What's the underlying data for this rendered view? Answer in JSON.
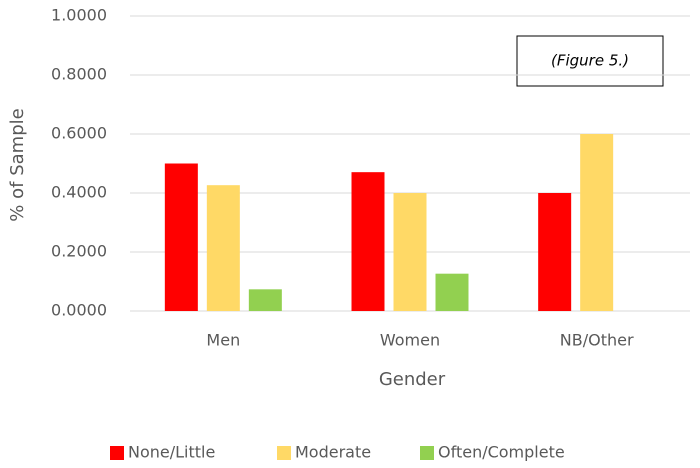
{
  "chart_data": {
    "type": "bar",
    "categories": [
      "Men",
      "Women",
      "NB/Other"
    ],
    "series": [
      {
        "name": "None/Little",
        "color": "#ff0000",
        "values": [
          0.5,
          0.4706,
          0.4
        ]
      },
      {
        "name": "Moderate",
        "color": "#ffd966",
        "values": [
          0.4265,
          0.4,
          0.6
        ]
      },
      {
        "name": "Often/Complete",
        "color": "#92d050",
        "values": [
          0.0735,
          0.1265,
          0
        ]
      }
    ],
    "ylim": [
      0,
      1
    ],
    "yticks": [
      {
        "value": 0,
        "label": "0.0000"
      },
      {
        "value": 0.2,
        "label": "0.2000"
      },
      {
        "value": 0.4,
        "label": "0.4000"
      },
      {
        "value": 0.6,
        "label": "0.6000"
      },
      {
        "value": 0.8,
        "label": "0.8000"
      },
      {
        "value": 1,
        "label": "1.0000"
      }
    ],
    "x_label": "Gender",
    "y_label": "% of Sample",
    "annotation": "(Figure 5.)",
    "grid": true,
    "legend": "bottom"
  }
}
